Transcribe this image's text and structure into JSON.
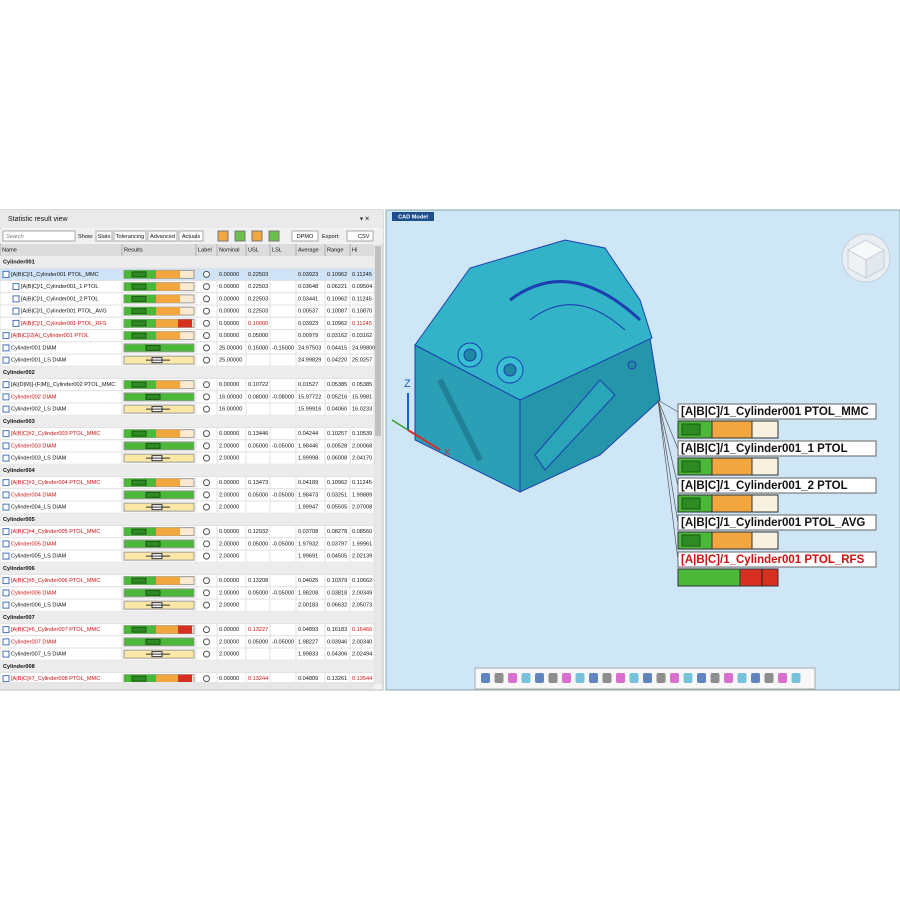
{
  "panel_title": "Statistic result view",
  "toolbar": {
    "search": "Search",
    "show": "Show:",
    "buttons": [
      "Stats",
      "Tolerancing",
      "Advanced",
      "Actuals"
    ],
    "dpmo": "DPMO",
    "export": "Export:",
    "csv": "CSV"
  },
  "table": {
    "columns": [
      "Name",
      "Results",
      "Label",
      "Nominal",
      "USL",
      "LSL",
      "Average",
      "Range",
      "Hi"
    ],
    "rows": [
      {
        "group": "Cylinder001"
      },
      {
        "name": "[A|B|C]/1_Cylinder001 PTOL_MMC",
        "nominal": "0.00000",
        "usl": "0.22503",
        "average": "0.03923",
        "range": "0.10962",
        "hi": "0.11245",
        "selected": true
      },
      {
        "name": "[A|B|C]/1_Cylinder001_1 PTOL",
        "nominal": "0.00000",
        "usl": "0.22503",
        "average": "0.03648",
        "range": "0.06221",
        "hi": "0.09504",
        "indent": 1
      },
      {
        "name": "[A|B|C]/1_Cylinder001_2 PTOL",
        "nominal": "0.00000",
        "usl": "0.22503",
        "average": "0.03441",
        "range": "0.10962",
        "hi": "0.11245",
        "indent": 1
      },
      {
        "name": "[A|B|C]/1_Cylinder001 PTOL_AVG",
        "nominal": "0.00000",
        "usl": "0.22503",
        "average": "0.00537",
        "range": "0.10087",
        "hi": "0.10870",
        "indent": 1
      },
      {
        "name": "[A|B|C]/1_Cylinder001 PTOL_RFS",
        "nominal": "0.00000",
        "usl": "0.10000",
        "average": "0.03923",
        "range": "0.10962",
        "hi": "0.11245",
        "indent": 1,
        "red_cells": [
          "name",
          "usl",
          "hi"
        ]
      },
      {
        "name": "[A|B|C]/2|A|_Cylinder001 PTOL",
        "nominal": "0.00000",
        "usl": "0.05000",
        "average": "0.00979",
        "range": "0.03162",
        "hi": "0.03162",
        "red_cells": [
          "name"
        ]
      },
      {
        "name": "Cylinder001 DIAM",
        "nominal": "25.00000",
        "usl": "0.15000",
        "lsl": "-0.15000",
        "average": "24.97503",
        "range": "0.04415",
        "hi": "24.99800"
      },
      {
        "name": "Cylinder001_LS DIAM",
        "nominal": "25.00000",
        "average": "24.99829",
        "range": "0.04220",
        "hi": "25.0257"
      },
      {
        "group": "Cylinder002"
      },
      {
        "name": "[A|(D|M)]-(F|M)|_Cylinder002 PTOL_MMC",
        "nominal": "0.00000",
        "usl": "0.10722",
        "average": "0.01527",
        "range": "0.05385",
        "hi": "0.05385"
      },
      {
        "name": "Cylinder002 DIAM",
        "nominal": "16.00000",
        "usl": "0.08000",
        "lsl": "-0.08000",
        "average": "15.97722",
        "range": "0.05216",
        "hi": "15.9981",
        "red_cells": [
          "name"
        ]
      },
      {
        "name": "Cylinder002_LS DIAM",
        "nominal": "16.00000",
        "average": "15.99916",
        "range": "0.04060",
        "hi": "16.0233"
      },
      {
        "group": "Cylinder003"
      },
      {
        "name": "[A|B|C]#2_Cylinder003 PTOL_MMC",
        "nominal": "0.00000",
        "usl": "0.13446",
        "average": "0.04244",
        "range": "0.10257",
        "hi": "0.10539",
        "red_cells": [
          "name"
        ]
      },
      {
        "name": "Cylinder003 DIAM",
        "nominal": "2.00000",
        "usl": "0.05000",
        "lsl": "-0.05000",
        "average": "1.98446",
        "range": "0.00528",
        "hi": "2.00068",
        "red_cells": [
          "name"
        ]
      },
      {
        "name": "Cylinder003_LS DIAM",
        "nominal": "2.00000",
        "average": "1.99998",
        "range": "0.06008",
        "hi": "2.04170"
      },
      {
        "group": "Cylinder004"
      },
      {
        "name": "[A|B|C]#3_Cylinder004 PTOL_MMC",
        "nominal": "0.00000",
        "usl": "0.13473",
        "average": "0.04189",
        "range": "0.10962",
        "hi": "0.11245",
        "red_cells": [
          "name"
        ]
      },
      {
        "name": "Cylinder004 DIAM",
        "nominal": "2.00000",
        "usl": "0.05000",
        "lsl": "-0.05000",
        "average": "1.98473",
        "range": "0.03251",
        "hi": "1.99889",
        "red_cells": [
          "name"
        ]
      },
      {
        "name": "Cylinder004_LS DIAM",
        "nominal": "2.00000",
        "average": "1.99947",
        "range": "0.05505",
        "hi": "2.07008"
      },
      {
        "group": "Cylinder005"
      },
      {
        "name": "[A|B|C]#4_Cylinder005 PTOL_MMC",
        "nominal": "0.00000",
        "usl": "0.12932",
        "average": "0.03708",
        "range": "0.08278",
        "hi": "0.08560",
        "red_cells": [
          "name"
        ]
      },
      {
        "name": "Cylinder005 DIAM",
        "nominal": "2.00000",
        "usl": "0.05000",
        "lsl": "-0.05000",
        "average": "1.97932",
        "range": "0.03797",
        "hi": "1.99961",
        "red_cells": [
          "name"
        ]
      },
      {
        "name": "Cylinder005_LS DIAM",
        "nominal": "2.00000",
        "average": "1.99691",
        "range": "0.04505",
        "hi": "2.02139"
      },
      {
        "group": "Cylinder006"
      },
      {
        "name": "[A|B|C]#5_Cylinder006 PTOL_MMC",
        "nominal": "0.00000",
        "usl": "0.13208",
        "average": "0.04025",
        "range": "0.10379",
        "hi": "0.10662",
        "red_cells": [
          "name"
        ]
      },
      {
        "name": "Cylinder006 DIAM",
        "nominal": "2.00000",
        "usl": "0.05000",
        "lsl": "-0.05000",
        "average": "1.98208",
        "range": "0.03818",
        "hi": "2.00349",
        "red_cells": [
          "name"
        ]
      },
      {
        "name": "Cylinder006_LS DIAM",
        "nominal": "2.00000",
        "average": "2.00183",
        "range": "0.06632",
        "hi": "2.05073"
      },
      {
        "group": "Cylinder007"
      },
      {
        "name": "[A|B|C]#6_Cylinder007 PTOL_MMC",
        "nominal": "0.00000",
        "usl": "0.13227",
        "average": "0.04893",
        "range": "0.16183",
        "hi": "0.16466",
        "red_cells": [
          "name",
          "usl",
          "hi"
        ]
      },
      {
        "name": "Cylinder007 DIAM",
        "nominal": "2.00000",
        "usl": "0.05000",
        "lsl": "-0.05000",
        "average": "1.98227",
        "range": "0.03946",
        "hi": "2.00340",
        "red_cells": [
          "name"
        ]
      },
      {
        "name": "Cylinder007_LS DIAM",
        "nominal": "2.00000",
        "average": "1.99833",
        "range": "0.04306",
        "hi": "2.02494"
      },
      {
        "group": "Cylinder008"
      },
      {
        "name": "[A|B|C]#7_Cylinder008 PTOL_MMC",
        "nominal": "0.00000",
        "usl": "0.13244",
        "average": "0.04809",
        "range": "0.13261",
        "hi": "0.13544",
        "red_cells": [
          "name",
          "usl",
          "hi"
        ]
      }
    ]
  },
  "cad": {
    "tab": "CAD Model",
    "axes": [
      "Z",
      "X"
    ],
    "callouts": [
      {
        "label": "[A|B|C]/1_Cylinder001 PTOL_MMC"
      },
      {
        "label": "[A|B|C]/1_Cylinder001_1 PTOL"
      },
      {
        "label": "[A|B|C]/1_Cylinder001_2 PTOL"
      },
      {
        "label": "[A|B|C]/1_Cylinder001 PTOL_AVG"
      },
      {
        "label": "[A|B|C]/1_Cylinder001 PTOL_RFS",
        "color": "#d01010"
      }
    ]
  }
}
